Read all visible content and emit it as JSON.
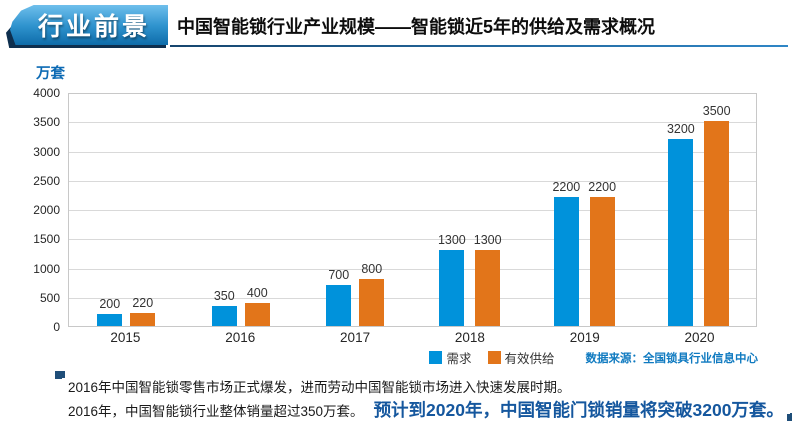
{
  "header": {
    "banner_label": "行业前景",
    "title": "中国智能锁行业产业规模――智能锁近5年的供给及需求概况"
  },
  "chart_data": {
    "type": "bar",
    "title": "中国智能锁行业产业规模――智能锁近5年的供给及需求概况",
    "unit_label": "万套",
    "categories": [
      "2015",
      "2016",
      "2017",
      "2018",
      "2019",
      "2020"
    ],
    "series": [
      {
        "name": "需求",
        "color": "#0092DB",
        "values": [
          200,
          350,
          700,
          1300,
          2200,
          3200
        ]
      },
      {
        "name": "有效供给",
        "color": "#E2751A",
        "values": [
          220,
          400,
          800,
          1300,
          2200,
          3500
        ]
      }
    ],
    "ylim": [
      0,
      4000
    ],
    "ytick_step": 500,
    "grid": true,
    "legend_position": "bottom",
    "data_labels": true
  },
  "source_note": "数据来源：全国锁具行业信息中心",
  "footer": {
    "line1": "2016年中国智能锁零售市场正式爆发，进而劳动中国智能锁市场进入快速发展时期。",
    "line2_normal": "2016年，中国智能锁行业整体销量超过350万套。",
    "line2_highlight": "预计到2020年，中国智能门锁销量将突破3200万套。"
  },
  "colors": {
    "demand_blue": "#0092DB",
    "supply_orange": "#E2751A",
    "banner_blue_top": "#6FBFEC",
    "banner_blue_bottom": "#0E6CA9",
    "banner_shadow_navy": "#0E2F4E",
    "title_underline": "#2E74B5",
    "axis_unit_blue": "#0C6AB4",
    "source_blue": "#0F7AC0",
    "highlight_blue": "#15579E",
    "quote_navy": "#1F4E79"
  }
}
